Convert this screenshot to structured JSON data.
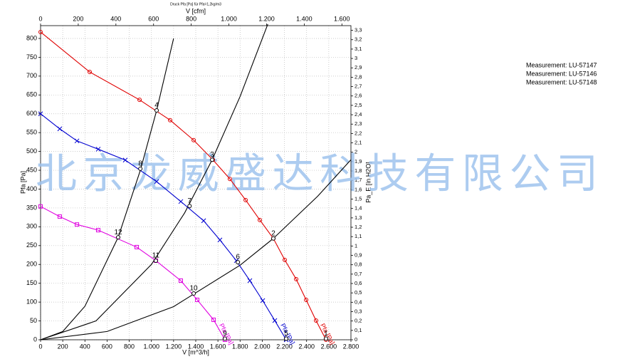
{
  "chart_data": {
    "type": "line",
    "title": "Druck Pfa [Pa] für Pfa=1,2kg/m3",
    "watermark": "北京龙威盛达科技有限公司",
    "x_label": "V [m^3/h]",
    "x2_label": "V [cfm]",
    "y_label": "Pfa [Pa]",
    "y2_label": "Pa_E [in H2O]",
    "xlim": [
      0,
      2800
    ],
    "x2lim": [
      0,
      1648
    ],
    "ylim": [
      0,
      834
    ],
    "y2lim": [
      0,
      3.35
    ],
    "grid": true,
    "legend": "top-right",
    "xticks": [
      0,
      200,
      400,
      600,
      800,
      {
        "value": 1000,
        "label": "1.000"
      },
      {
        "value": 1200,
        "label": "1.200"
      },
      {
        "value": 1400,
        "label": "1.400"
      },
      {
        "value": 1600,
        "label": "1.600"
      },
      {
        "value": 1800,
        "label": "1.800"
      },
      {
        "value": 2000,
        "label": "2.000"
      },
      {
        "value": 2200,
        "label": "2.200"
      },
      {
        "value": 2400,
        "label": "2.400"
      },
      {
        "value": 2600,
        "label": "2.600"
      },
      {
        "value": 2800,
        "label": "2.800"
      }
    ],
    "x2ticks": [
      0,
      200,
      400,
      600,
      800,
      {
        "value": 1000,
        "label": "1.000"
      },
      {
        "value": 1200,
        "label": "1.200"
      },
      {
        "value": 1400,
        "label": "1.400"
      },
      {
        "value": 1600,
        "label": "1.600"
      }
    ],
    "yticks": [
      0,
      50,
      100,
      150,
      200,
      250,
      300,
      350,
      400,
      450,
      500,
      550,
      600,
      650,
      700,
      750,
      800
    ],
    "y2ticks": [
      0,
      {
        "value": 0.1,
        "label": "0,1"
      },
      {
        "value": 0.2,
        "label": "0,2"
      },
      {
        "value": 0.3,
        "label": "0,3"
      },
      {
        "value": 0.4,
        "label": "0,4"
      },
      {
        "value": 0.5,
        "label": "0,5"
      },
      {
        "value": 0.6,
        "label": "0,6"
      },
      {
        "value": 0.7,
        "label": "0,7"
      },
      {
        "value": 0.8,
        "label": "0,8"
      },
      {
        "value": 0.9,
        "label": "0,9"
      },
      1,
      {
        "value": 1.1,
        "label": "1,1"
      },
      {
        "value": 1.2,
        "label": "1,2"
      },
      {
        "value": 1.3,
        "label": "1,3"
      },
      {
        "value": 1.4,
        "label": "1,4"
      },
      {
        "value": 1.5,
        "label": "1,5"
      },
      {
        "value": 1.6,
        "label": "1,6"
      },
      {
        "value": 1.7,
        "label": "1,7"
      },
      {
        "value": 1.8,
        "label": "1,8"
      },
      {
        "value": 1.9,
        "label": "1,9"
      },
      2,
      {
        "value": 2.1,
        "label": "2,1"
      },
      {
        "value": 2.2,
        "label": "2,2"
      },
      {
        "value": 2.3,
        "label": "2,3"
      },
      {
        "value": 2.4,
        "label": "2,4"
      },
      {
        "value": 2.5,
        "label": "2,5"
      },
      {
        "value": 2.6,
        "label": "2,6"
      },
      {
        "value": 2.7,
        "label": "2,7"
      },
      {
        "value": 2.8,
        "label": "2,8"
      },
      {
        "value": 2.9,
        "label": "2,9"
      },
      3,
      {
        "value": 3.1,
        "label": "3,1"
      },
      {
        "value": 3.2,
        "label": "3,2"
      },
      {
        "value": 3.3,
        "label": "3,3"
      }
    ],
    "series": [
      {
        "name": "Measurement: LU-57147",
        "color": "#e00000",
        "marker": "circle",
        "curve_label": "Pfa [Pa]",
        "x": [
          0,
          443,
          893,
          1169,
          1381,
          1554,
          1708,
          1850,
          1978,
          2100,
          2203,
          2306,
          2396,
          2485,
          2575
        ],
        "values": [
          817,
          711,
          637,
          583,
          530,
          478,
          427,
          371,
          318,
          269,
          212,
          161,
          106,
          51,
          0
        ]
      },
      {
        "name": "Measurement: LU-57146",
        "color": "#0000d0",
        "marker": "cross",
        "curve_label": "Pfa [Pa]",
        "x": [
          0,
          173,
          328,
          520,
          764,
          1047,
          1265,
          1471,
          1618,
          1766,
          1888,
          2004,
          2113,
          2216
        ],
        "values": [
          600,
          560,
          528,
          506,
          477,
          420,
          367,
          316,
          265,
          210,
          157,
          104,
          51,
          0
        ]
      },
      {
        "name": "Measurement: LU-57148",
        "color": "#e000e0",
        "marker": "square",
        "curve_label": "Pfa [Pa]",
        "x": [
          0,
          173,
          328,
          520,
          867,
          1040,
          1265,
          1413,
          1561,
          1663
        ],
        "values": [
          354,
          327,
          306,
          291,
          246,
          210,
          157,
          106,
          53,
          0
        ]
      }
    ],
    "system_curves": [
      {
        "x": [
          0,
          200,
          400,
          700,
          900,
          1047,
          1200
        ],
        "values": [
          0,
          22,
          89,
          272,
          450,
          609,
          800
        ]
      },
      {
        "x": [
          0,
          500,
          1000,
          1300,
          1548,
          1800,
          2050
        ],
        "values": [
          0,
          50,
          200,
          337,
          478,
          646,
          838
        ]
      },
      {
        "x": [
          0,
          600,
          1200,
          1800,
          2100,
          2500,
          2800
        ],
        "values": [
          0,
          22,
          88,
          198,
          269,
          381,
          478
        ]
      }
    ],
    "operating_points": [
      {
        "label": "1",
        "x": 2575,
        "y": 3
      },
      {
        "label": "2",
        "x": 2100,
        "y": 269
      },
      {
        "label": "3",
        "x": 1548,
        "y": 478
      },
      {
        "label": "4",
        "x": 1047,
        "y": 609
      },
      {
        "label": "5",
        "x": 2216,
        "y": 3
      },
      {
        "label": "6",
        "x": 1780,
        "y": 206
      },
      {
        "label": "7",
        "x": 1344,
        "y": 355
      },
      {
        "label": "8",
        "x": 900,
        "y": 454
      },
      {
        "label": "9",
        "x": 1663,
        "y": 3
      },
      {
        "label": "10",
        "x": 1381,
        "y": 123
      },
      {
        "label": "11",
        "x": 1040,
        "y": 210
      },
      {
        "label": "12",
        "x": 700,
        "y": 272
      }
    ]
  }
}
